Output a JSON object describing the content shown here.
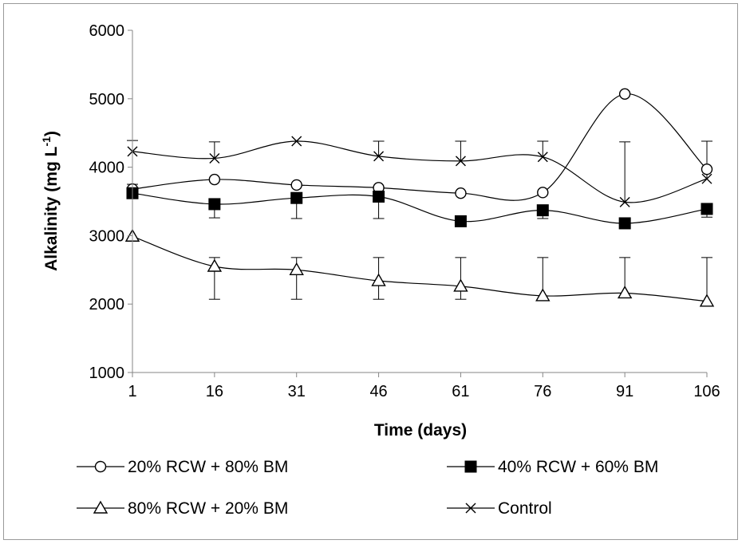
{
  "chart_data": {
    "type": "line",
    "title": "",
    "xlabel": "Time (days)",
    "ylabel": "Alkalinity (mg  L",
    "ylabel_sup": "-1",
    "ylabel_tail": ")",
    "xlim": [
      1,
      106
    ],
    "ylim": [
      1000,
      6000
    ],
    "grid": false,
    "legend_position": "bottom",
    "x": [
      1,
      16,
      31,
      46,
      61,
      76,
      91,
      106
    ],
    "x_tick_labels": [
      "1",
      "16",
      "31",
      "46",
      "61",
      "76",
      "91",
      "106"
    ],
    "y_tick_labels": [
      "1000",
      "2000",
      "3000",
      "4000",
      "5000",
      "6000"
    ],
    "y_ticks": [
      1000,
      2000,
      3000,
      4000,
      5000,
      6000
    ],
    "series": [
      {
        "name": "20% RCW + 80% BM",
        "marker": "circle-open",
        "values": [
          3680,
          3820,
          3740,
          3700,
          3620,
          3630,
          5070,
          3970
        ],
        "err_upper": [
          70,
          0,
          0,
          0,
          0,
          0,
          0,
          0
        ],
        "err_lower": [
          0,
          0,
          0,
          0,
          0,
          0,
          0,
          0
        ]
      },
      {
        "name": "40% RCW  + 60% BM",
        "marker": "square-filled",
        "values": [
          3620,
          3460,
          3550,
          3570,
          3210,
          3370,
          3180,
          3390
        ],
        "err_upper": [
          0,
          0,
          0,
          0,
          0,
          0,
          0,
          0
        ],
        "err_lower": [
          0,
          200,
          300,
          320,
          0,
          120,
          0,
          120
        ]
      },
      {
        "name": "80% RCW  + 20% BM",
        "marker": "triangle-open",
        "values": [
          2990,
          2550,
          2500,
          2340,
          2260,
          2120,
          2160,
          2040
        ],
        "err_upper": [
          0,
          130,
          180,
          340,
          420,
          560,
          520,
          640
        ],
        "err_lower": [
          0,
          480,
          430,
          270,
          190,
          0,
          0,
          0
        ]
      },
      {
        "name": "Control",
        "marker": "x",
        "values": [
          4230,
          4130,
          4380,
          4160,
          4090,
          4150,
          3490,
          3830
        ],
        "err_upper": [
          160,
          240,
          0,
          220,
          290,
          230,
          880,
          550
        ],
        "err_lower": [
          560,
          0,
          0,
          0,
          0,
          0,
          0,
          0
        ]
      }
    ]
  }
}
